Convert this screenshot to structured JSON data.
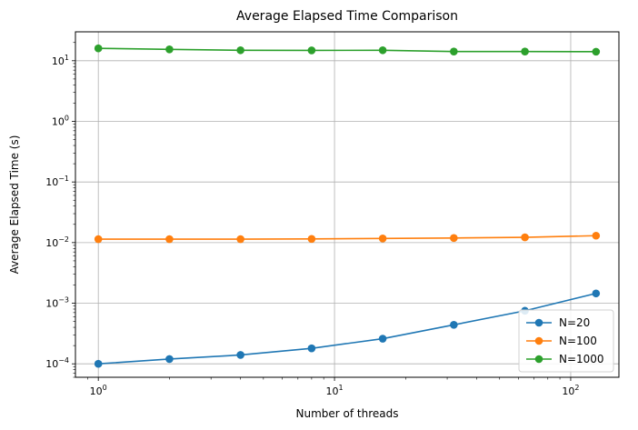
{
  "chart_data": {
    "type": "line",
    "title": "Average Elapsed Time Comparison",
    "xlabel": "Number of threads",
    "ylabel": "Average Elapsed Time (s)",
    "xscale": "log",
    "yscale": "log",
    "xlim": [
      0.8,
      160
    ],
    "ylim": [
      6e-05,
      30
    ],
    "grid": true,
    "legend_position": "lower-right",
    "x": [
      1,
      2,
      4,
      8,
      16,
      32,
      64,
      128
    ],
    "xticks": [
      {
        "base": "10",
        "exp": "0",
        "value": 1
      },
      {
        "base": "10",
        "exp": "1",
        "value": 10
      },
      {
        "base": "10",
        "exp": "2",
        "value": 100
      }
    ],
    "yticks": [
      {
        "base": "10",
        "exp": "−4",
        "value": 0.0001
      },
      {
        "base": "10",
        "exp": "−3",
        "value": 0.001
      },
      {
        "base": "10",
        "exp": "−2",
        "value": 0.01
      },
      {
        "base": "10",
        "exp": "−1",
        "value": 0.1
      },
      {
        "base": "10",
        "exp": "0",
        "value": 1
      },
      {
        "base": "10",
        "exp": "1",
        "value": 10
      }
    ],
    "series": [
      {
        "name": "N=20",
        "color": "#1f77b4",
        "values": [
          0.0001,
          0.00012,
          0.00014,
          0.00018,
          0.00026,
          0.00044,
          0.00075,
          0.00145
        ]
      },
      {
        "name": "N=100",
        "color": "#ff7f0e",
        "values": [
          0.0114,
          0.0114,
          0.0114,
          0.0115,
          0.0117,
          0.0119,
          0.0122,
          0.013
        ]
      },
      {
        "name": "N=1000",
        "color": "#2ca02c",
        "values": [
          16.0,
          15.4,
          14.9,
          14.8,
          14.9,
          14.2,
          14.2,
          14.1
        ]
      }
    ]
  }
}
